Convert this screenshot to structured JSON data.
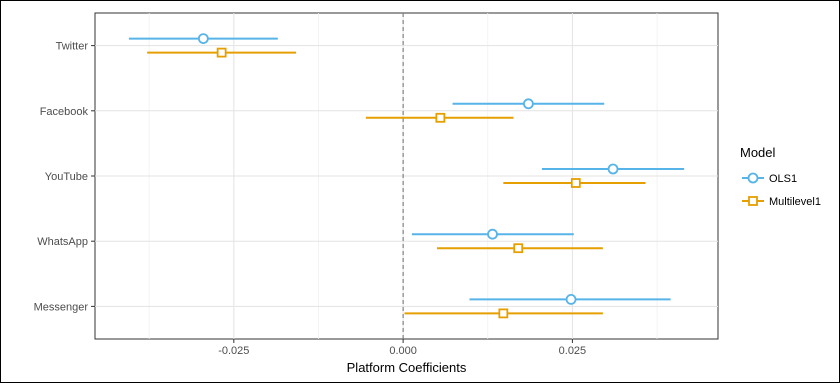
{
  "chart_data": {
    "type": "scatter",
    "subtype": "coefficient-plot-with-confidence-intervals",
    "xlabel": "Platform Coefficients",
    "ylabel": "",
    "xlim": [
      -0.0455,
      0.0465
    ],
    "xticks": [
      -0.025,
      0.0,
      0.025
    ],
    "xtick_labels": [
      "-0.025",
      "0.000",
      "0.025"
    ],
    "zero_line": true,
    "grid": true,
    "categories": [
      "Twitter",
      "Facebook",
      "YouTube",
      "WhatsApp",
      "Messenger"
    ],
    "legend": {
      "title": "Model",
      "position": "right"
    },
    "series": [
      {
        "name": "OLS1",
        "color": "#56B4E9",
        "marker": "circle",
        "estimates": [
          -0.0295,
          0.0185,
          0.031,
          0.0132,
          0.0248
        ],
        "ci_low": [
          -0.0405,
          0.0073,
          0.0205,
          0.0013,
          0.0098
        ],
        "ci_high": [
          -0.0185,
          0.0297,
          0.0415,
          0.0252,
          0.0395
        ]
      },
      {
        "name": "Multilevel1",
        "color": "#E69F00",
        "marker": "square",
        "estimates": [
          -0.0268,
          0.0055,
          0.0255,
          0.017,
          0.0148
        ],
        "ci_low": [
          -0.0378,
          -0.0055,
          0.0148,
          0.005,
          0.0002
        ],
        "ci_high": [
          -0.0158,
          0.0163,
          0.0358,
          0.0295,
          0.0295
        ]
      }
    ]
  }
}
